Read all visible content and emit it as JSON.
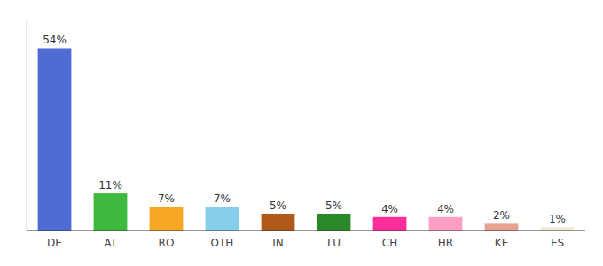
{
  "chart_data": {
    "type": "bar",
    "categories": [
      "DE",
      "AT",
      "RO",
      "OTH",
      "IN",
      "LU",
      "CH",
      "HR",
      "KE",
      "ES"
    ],
    "values": [
      54,
      11,
      7,
      7,
      5,
      5,
      4,
      4,
      2,
      1
    ],
    "value_labels": [
      "54%",
      "11%",
      "7%",
      "7%",
      "5%",
      "5%",
      "4%",
      "4%",
      "2%",
      "1%"
    ],
    "colors": [
      "#4f6cd4",
      "#3dba3d",
      "#f5a623",
      "#87ceeb",
      "#b05a1a",
      "#2a8a2a",
      "#ff2d9b",
      "#ff9ec4",
      "#e8a090",
      "#f0ead8"
    ],
    "ylim": [
      0,
      62
    ],
    "data_labels": true,
    "tick_labels": "x",
    "grid": false
  }
}
